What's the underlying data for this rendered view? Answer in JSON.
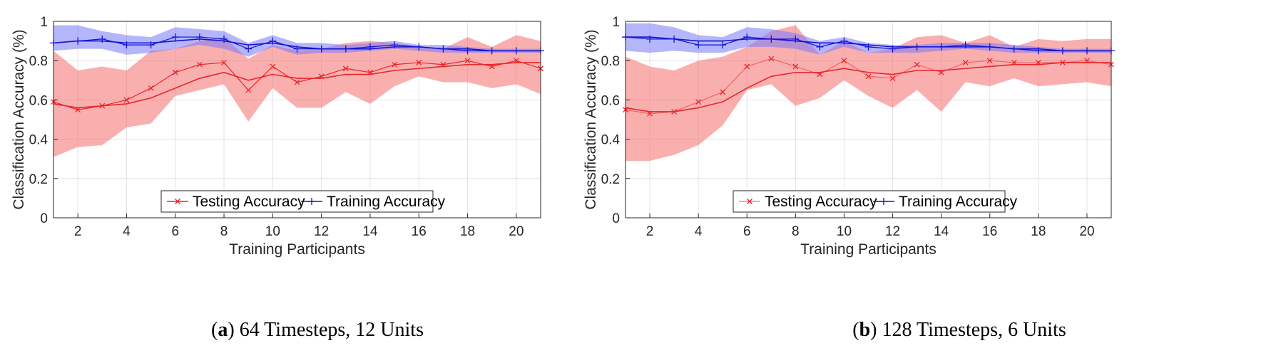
{
  "chart_data": [
    {
      "id": "a",
      "type": "line",
      "caption_letter": "a",
      "caption_text": " 64 Timesteps, 12 Units",
      "title": "",
      "xlabel": "Training Participants",
      "ylabel": "Classification Accuracy (%)",
      "xlim": [
        1,
        21
      ],
      "ylim": [
        0,
        1
      ],
      "xticks": [
        2,
        4,
        6,
        8,
        10,
        12,
        14,
        16,
        18,
        20
      ],
      "yticks": [
        0,
        0.2,
        0.4,
        0.6,
        0.8,
        1
      ],
      "grid": true,
      "legend_position": "bottom-center",
      "x": [
        1,
        2,
        3,
        4,
        5,
        6,
        7,
        8,
        9,
        10,
        11,
        12,
        13,
        14,
        15,
        16,
        17,
        18,
        19,
        20,
        21
      ],
      "series": [
        {
          "name": "Testing Accuracy",
          "color": "#e8262b",
          "marker": "x",
          "values": [
            0.59,
            0.55,
            0.57,
            0.6,
            0.66,
            0.74,
            0.78,
            0.79,
            0.65,
            0.77,
            0.69,
            0.72,
            0.76,
            0.74,
            0.78,
            0.79,
            0.78,
            0.8,
            0.77,
            0.8,
            0.76
          ],
          "trend": [
            0.58,
            0.56,
            0.57,
            0.58,
            0.61,
            0.66,
            0.71,
            0.74,
            0.7,
            0.73,
            0.71,
            0.71,
            0.73,
            0.73,
            0.75,
            0.76,
            0.77,
            0.78,
            0.78,
            0.79,
            0.79
          ],
          "band_upper": [
            0.85,
            0.75,
            0.77,
            0.75,
            0.85,
            0.86,
            0.9,
            0.92,
            0.81,
            0.88,
            0.85,
            0.86,
            0.89,
            0.9,
            0.89,
            0.87,
            0.86,
            0.92,
            0.87,
            0.93,
            0.9
          ],
          "band_lower": [
            0.31,
            0.36,
            0.37,
            0.46,
            0.48,
            0.62,
            0.65,
            0.68,
            0.49,
            0.66,
            0.56,
            0.56,
            0.64,
            0.58,
            0.67,
            0.72,
            0.69,
            0.69,
            0.66,
            0.68,
            0.63
          ]
        },
        {
          "name": "Training Accuracy",
          "color": "#1414d2",
          "marker": "+",
          "values": [
            0.89,
            0.9,
            0.91,
            0.88,
            0.88,
            0.92,
            0.92,
            0.91,
            0.86,
            0.9,
            0.86,
            0.86,
            0.86,
            0.87,
            0.88,
            0.87,
            0.86,
            0.85,
            0.85,
            0.85,
            0.85
          ],
          "trend": [
            0.89,
            0.9,
            0.9,
            0.89,
            0.89,
            0.9,
            0.91,
            0.9,
            0.88,
            0.89,
            0.87,
            0.86,
            0.86,
            0.86,
            0.87,
            0.87,
            0.86,
            0.86,
            0.85,
            0.85,
            0.85
          ],
          "band_upper": [
            0.98,
            0.98,
            0.95,
            0.93,
            0.92,
            0.97,
            0.96,
            0.95,
            0.89,
            0.93,
            0.89,
            0.89,
            0.88,
            0.89,
            0.9,
            0.88,
            0.88,
            0.87,
            0.86,
            0.86,
            0.86
          ],
          "band_lower": [
            0.85,
            0.86,
            0.86,
            0.83,
            0.84,
            0.86,
            0.88,
            0.86,
            0.82,
            0.87,
            0.83,
            0.84,
            0.84,
            0.85,
            0.86,
            0.85,
            0.84,
            0.84,
            0.84,
            0.84,
            0.84
          ]
        }
      ]
    },
    {
      "id": "b",
      "type": "line",
      "caption_letter": "b",
      "caption_text": " 128 Timesteps, 6 Units",
      "title": "",
      "xlabel": "Training Participants",
      "ylabel": "Classification Accuracy (%)",
      "xlim": [
        1,
        21
      ],
      "ylim": [
        0,
        1
      ],
      "xticks": [
        2,
        4,
        6,
        8,
        10,
        12,
        14,
        16,
        18,
        20
      ],
      "yticks": [
        0,
        0.2,
        0.4,
        0.6,
        0.8,
        1
      ],
      "grid": true,
      "legend_position": "bottom-center",
      "x": [
        1,
        2,
        3,
        4,
        5,
        6,
        7,
        8,
        9,
        10,
        11,
        12,
        13,
        14,
        15,
        16,
        17,
        18,
        19,
        20,
        21
      ],
      "series": [
        {
          "name": "Testing Accuracy",
          "color": "#e8262b",
          "marker": "x",
          "values": [
            0.55,
            0.53,
            0.54,
            0.59,
            0.64,
            0.77,
            0.81,
            0.77,
            0.73,
            0.8,
            0.72,
            0.71,
            0.78,
            0.74,
            0.79,
            0.8,
            0.79,
            0.79,
            0.79,
            0.8,
            0.78
          ],
          "trend": [
            0.56,
            0.54,
            0.54,
            0.56,
            0.59,
            0.66,
            0.72,
            0.74,
            0.74,
            0.76,
            0.74,
            0.73,
            0.75,
            0.75,
            0.76,
            0.77,
            0.78,
            0.78,
            0.79,
            0.79,
            0.79
          ],
          "band_upper": [
            0.82,
            0.77,
            0.75,
            0.8,
            0.82,
            0.87,
            0.95,
            0.98,
            0.83,
            0.9,
            0.84,
            0.86,
            0.92,
            0.93,
            0.89,
            0.93,
            0.87,
            0.91,
            0.9,
            0.91,
            0.91
          ],
          "band_lower": [
            0.29,
            0.29,
            0.32,
            0.37,
            0.47,
            0.65,
            0.68,
            0.57,
            0.61,
            0.7,
            0.62,
            0.56,
            0.65,
            0.54,
            0.69,
            0.67,
            0.71,
            0.67,
            0.68,
            0.69,
            0.67
          ]
        },
        {
          "name": "Training Accuracy",
          "color": "#1414d2",
          "marker": "+",
          "values": [
            0.92,
            0.91,
            0.91,
            0.88,
            0.88,
            0.92,
            0.91,
            0.91,
            0.87,
            0.9,
            0.87,
            0.86,
            0.87,
            0.87,
            0.88,
            0.87,
            0.86,
            0.85,
            0.85,
            0.85,
            0.85
          ],
          "trend": [
            0.92,
            0.92,
            0.91,
            0.9,
            0.9,
            0.91,
            0.91,
            0.9,
            0.89,
            0.89,
            0.88,
            0.87,
            0.87,
            0.87,
            0.87,
            0.87,
            0.86,
            0.86,
            0.85,
            0.85,
            0.85
          ],
          "band_upper": [
            0.99,
            0.99,
            0.97,
            0.93,
            0.92,
            0.97,
            0.96,
            0.94,
            0.9,
            0.92,
            0.89,
            0.88,
            0.88,
            0.89,
            0.89,
            0.89,
            0.88,
            0.87,
            0.86,
            0.86,
            0.86
          ],
          "band_lower": [
            0.85,
            0.84,
            0.85,
            0.84,
            0.84,
            0.87,
            0.87,
            0.86,
            0.83,
            0.87,
            0.84,
            0.84,
            0.84,
            0.85,
            0.86,
            0.85,
            0.84,
            0.84,
            0.84,
            0.84,
            0.84
          ]
        }
      ]
    }
  ]
}
